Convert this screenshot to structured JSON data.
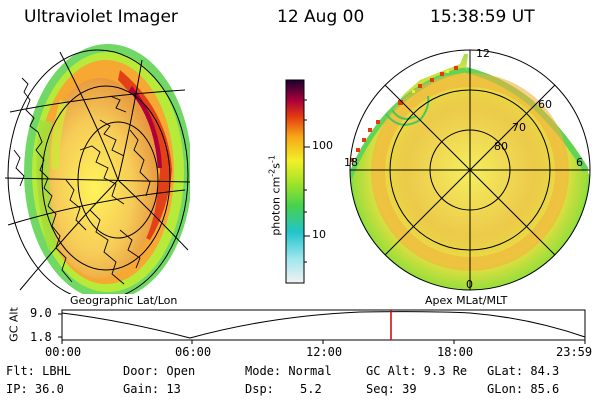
{
  "header": {
    "instrument": "Ultraviolet Imager",
    "date": "12 Aug 00",
    "time": "15:38:59 UT"
  },
  "colorbar": {
    "unit_label": "photon cm",
    "unit_sup1": "-2",
    "unit_mid": "s",
    "unit_sup2": "-1",
    "tick_100": "100",
    "tick_10": "10"
  },
  "left_panel": {
    "caption": "Geographic Lat/Lon"
  },
  "right_panel": {
    "caption": "Apex MLat/MLT",
    "mlt_12": "12",
    "mlt_18": "18",
    "mlt_6": "6",
    "mlt_0": "0",
    "lat_60": "60",
    "lat_70": "70",
    "lat_80": "80"
  },
  "altitude_plot": {
    "ylabel": "GC Alt",
    "y_top": "9.0",
    "y_bottom": "1.8",
    "x_ticks": [
      "00:00",
      "06:00",
      "12:00",
      "18:00",
      "23:59"
    ],
    "cursor_color": "#d00000"
  },
  "info": {
    "filter": "Flt: LBHL",
    "door": "Door: Open",
    "mode": "Mode: Normal",
    "gc_alt": "GC Alt: 9.3 Re",
    "glat": "GLat: 84.3",
    "ip": "IP: 36.0",
    "gain": "Gain: 13",
    "dsp_label": "Dsp:",
    "dsp_value": "5.2",
    "seq": "Seq: 39",
    "glon": "GLon: 85.6"
  }
}
